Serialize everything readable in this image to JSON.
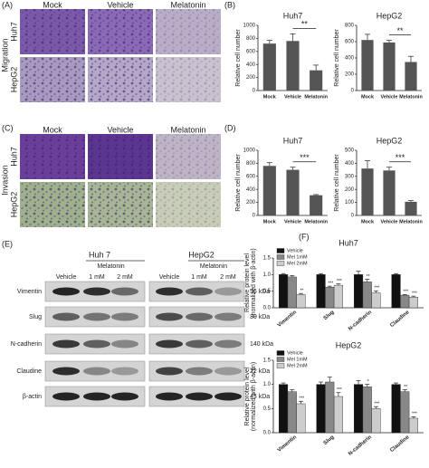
{
  "panels": [
    "(A)",
    "(B)",
    "(C)",
    "(D)",
    "(E)",
    "(F)"
  ],
  "micrographs": [
    {
      "label": "Migration",
      "columns": [
        "Mock",
        "Vehicle",
        "Melatonin"
      ],
      "rows": [
        "Huh7",
        "HepG2"
      ]
    },
    {
      "label": "Invasion",
      "columns": [
        "Mock",
        "Vehicle",
        "Melatonin"
      ],
      "rows": [
        "Huh7",
        "HepG2"
      ]
    }
  ],
  "blot": {
    "groups": [
      "Huh 7",
      "HepG2"
    ],
    "treatment": "Melatonin",
    "lanes": [
      "Vehicle",
      "1 mM",
      "2 mM"
    ],
    "proteins": [
      "Vimentin",
      "Slug",
      "N-cadherin",
      "Claudine",
      "β-actin"
    ],
    "sizes": [
      "56 kDa",
      "30 kDa",
      "140 kDa",
      "22 kDa",
      "43 kDa"
    ]
  },
  "chart_data": [
    {
      "type": "bar",
      "title": "Huh7",
      "ylabel": [
        "Relative cell number"
      ],
      "categories": [
        "Mock",
        "Vehicle",
        "Melatonin"
      ],
      "values": [
        720,
        760,
        310
      ],
      "errors": [
        50,
        110,
        80
      ],
      "color": "#555555",
      "significance": "**",
      "ylim": [
        0,
        1000
      ],
      "yticks": [
        0,
        200,
        400,
        600,
        800,
        1000
      ]
    },
    {
      "type": "bar",
      "title": "HepG2",
      "ylabel": [
        "Relative cell number"
      ],
      "categories": [
        "Mock",
        "Vehicle",
        "Melatonin"
      ],
      "values": [
        620,
        590,
        350
      ],
      "errors": [
        70,
        25,
        70
      ],
      "color": "#555555",
      "significance": "**",
      "ylim": [
        0,
        800
      ],
      "yticks": [
        0,
        200,
        400,
        600,
        800
      ]
    },
    {
      "type": "bar",
      "title": "Huh7",
      "ylabel": [
        "Relative cell number"
      ],
      "categories": [
        "Mock",
        "Vehicle",
        "Melatonin"
      ],
      "values": [
        760,
        700,
        310
      ],
      "errors": [
        50,
        40,
        10
      ],
      "color": "#555555",
      "significance": "***",
      "ylim": [
        0,
        1000
      ],
      "yticks": [
        0,
        200,
        400,
        600,
        800,
        1000
      ]
    },
    {
      "type": "bar",
      "title": "HepG2",
      "ylabel": [
        "Relative cell number"
      ],
      "categories": [
        "Mock",
        "Vehicle",
        "Melatonin"
      ],
      "values": [
        360,
        345,
        105
      ],
      "errors": [
        60,
        25,
        10
      ],
      "color": "#555555",
      "significance": "***",
      "ylim": [
        0,
        500
      ],
      "yticks": [
        0,
        100,
        200,
        300,
        400,
        500
      ]
    },
    {
      "type": "bar",
      "title": "Huh7",
      "ylabel": [
        "Relative protein  level",
        "(normalized with β-actin)"
      ],
      "categories": [
        "Vimentin",
        "Slug",
        "N-cadherin",
        "Claudine"
      ],
      "series": [
        {
          "name": "Vehicle",
          "color": "#111111",
          "values": [
            1,
            1,
            1,
            1
          ],
          "errors": [
            0.03,
            0.03,
            0.1,
            0.03
          ],
          "significance": [
            null,
            null,
            null,
            null
          ]
        },
        {
          "name": "Mel 1mM",
          "color": "#888888",
          "values": [
            0.93,
            0.62,
            0.78,
            0.38
          ],
          "errors": [
            0.04,
            0.03,
            0.08,
            0.02
          ],
          "significance": [
            null,
            "***",
            "**",
            "***"
          ]
        },
        {
          "name": "Mel 2mM",
          "color": "#cccccc",
          "values": [
            0.4,
            0.68,
            0.45,
            0.32
          ],
          "errors": [
            0.03,
            0.04,
            0.06,
            0.03
          ],
          "significance": [
            "**",
            "***",
            "***",
            "***"
          ]
        }
      ],
      "ylim": [
        0,
        1.5
      ],
      "yticks": [
        {
          "value": 0,
          "label": "0.0"
        },
        {
          "value": 0.5,
          "label": "0.5"
        },
        {
          "value": 1,
          "label": "1.0"
        },
        {
          "value": 1.5,
          "label": "1.5"
        }
      ]
    },
    {
      "type": "bar",
      "title": "HepG2",
      "ylabel": [
        "Relative protein  level",
        "(normalized with β-actin)"
      ],
      "categories": [
        "Vimentin",
        "Slug",
        "N-cadherin",
        "Claudine"
      ],
      "series": [
        {
          "name": "Vehicle",
          "color": "#111111",
          "values": [
            1,
            1,
            1,
            1
          ],
          "errors": [
            0.03,
            0.05,
            0.08,
            0.03
          ],
          "significance": [
            null,
            null,
            null,
            null
          ]
        },
        {
          "name": "Mel 1mM",
          "color": "#888888",
          "values": [
            0.85,
            1.05,
            0.95,
            0.85
          ],
          "errors": [
            0.04,
            0.1,
            0.05,
            0.04
          ],
          "significance": [
            null,
            null,
            "*",
            "**"
          ]
        },
        {
          "name": "Mel 2mM",
          "color": "#cccccc",
          "values": [
            0.6,
            0.75,
            0.5,
            0.3
          ],
          "errors": [
            0.05,
            0.08,
            0.04,
            0.03
          ],
          "significance": [
            "***",
            "***",
            "***",
            "***"
          ]
        }
      ],
      "ylim": [
        0,
        1.5
      ],
      "yticks": [
        {
          "value": 0,
          "label": "0.0"
        },
        {
          "value": 0.5,
          "label": "0.5"
        },
        {
          "value": 1,
          "label": "1.0"
        },
        {
          "value": 1.5,
          "label": "1.5"
        }
      ]
    }
  ]
}
